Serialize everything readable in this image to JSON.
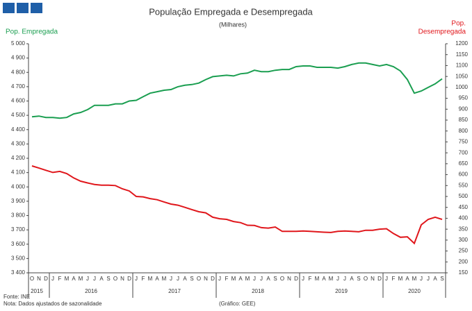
{
  "chart_data": {
    "type": "line",
    "title": "População Empregada e Desempregada",
    "subtitle": "(Milhares)",
    "ylabel": "Pop. Empregada",
    "y2label": [
      "Pop.",
      "Desempregada"
    ],
    "categories": [
      "O",
      "N",
      "D",
      "J",
      "F",
      "M",
      "A",
      "M",
      "J",
      "J",
      "A",
      "S",
      "O",
      "N",
      "D",
      "J",
      "F",
      "M",
      "A",
      "M",
      "J",
      "J",
      "A",
      "S",
      "O",
      "N",
      "D",
      "J",
      "F",
      "M",
      "A",
      "M",
      "J",
      "J",
      "A",
      "S",
      "O",
      "N",
      "D",
      "J",
      "F",
      "M",
      "A",
      "M",
      "J",
      "J",
      "A",
      "S",
      "O",
      "N",
      "D",
      "J",
      "F",
      "M",
      "A",
      "M",
      "J",
      "J",
      "A",
      "S"
    ],
    "years": [
      "2015",
      "2016",
      "2017",
      "2018",
      "2019",
      "2020"
    ],
    "series": [
      {
        "name": "Pop. Empregada",
        "color": "#1a9e50",
        "axis": "y",
        "values": [
          4490,
          4495,
          4485,
          4485,
          4480,
          4485,
          4510,
          4520,
          4540,
          4570,
          4570,
          4570,
          4580,
          4580,
          4600,
          4605,
          4630,
          4655,
          4665,
          4675,
          4680,
          4700,
          4710,
          4715,
          4725,
          4750,
          4770,
          4775,
          4780,
          4775,
          4790,
          4795,
          4815,
          4805,
          4805,
          4815,
          4820,
          4820,
          4840,
          4845,
          4845,
          4835,
          4835,
          4835,
          4830,
          4840,
          4855,
          4865,
          4865,
          4855,
          4845,
          4855,
          4840,
          4810,
          4750,
          4655,
          4670,
          4695,
          4720,
          4755
        ]
      },
      {
        "name": "Pop. Desempregada",
        "color": "#e0161b",
        "axis": "y2",
        "values": [
          640,
          630,
          620,
          610,
          615,
          605,
          585,
          570,
          562,
          555,
          552,
          552,
          550,
          535,
          525,
          500,
          498,
          490,
          485,
          475,
          465,
          460,
          450,
          440,
          430,
          425,
          405,
          398,
          395,
          385,
          380,
          368,
          367,
          357,
          355,
          360,
          340,
          340,
          340,
          342,
          340,
          338,
          336,
          335,
          340,
          342,
          340,
          338,
          345,
          345,
          350,
          352,
          330,
          313,
          315,
          285,
          370,
          395,
          405,
          395
        ]
      }
    ],
    "ylim": [
      3400,
      5000
    ],
    "yticks": [
      {
        "value": 3400,
        "label": "3 400"
      },
      {
        "value": 3500,
        "label": "3 500"
      },
      {
        "value": 3600,
        "label": "3 600"
      },
      {
        "value": 3700,
        "label": "3 700"
      },
      {
        "value": 3800,
        "label": "3 800"
      },
      {
        "value": 3900,
        "label": "3 900"
      },
      {
        "value": 4000,
        "label": "4 000"
      },
      {
        "value": 4100,
        "label": "4 100"
      },
      {
        "value": 4200,
        "label": "4 200"
      },
      {
        "value": 4300,
        "label": "4 300"
      },
      {
        "value": 4400,
        "label": "4 400"
      },
      {
        "value": 4500,
        "label": "4 500"
      },
      {
        "value": 4600,
        "label": "4 600"
      },
      {
        "value": 4700,
        "label": "4 700"
      },
      {
        "value": 4800,
        "label": "4 800"
      },
      {
        "value": 4900,
        "label": "4 900"
      },
      {
        "value": 5000,
        "label": "5 000"
      }
    ],
    "y2lim": [
      150,
      1200
    ],
    "y2ticks": [
      150,
      200,
      250,
      300,
      350,
      400,
      450,
      500,
      550,
      600,
      650,
      700,
      750,
      800,
      850,
      900,
      950,
      1000,
      1050,
      1100,
      1150,
      1200
    ],
    "source": "Fonte: INE",
    "note": "Nota: Dados ajustados de sazonalidade",
    "credit": "(Gráfico: GEE)"
  }
}
